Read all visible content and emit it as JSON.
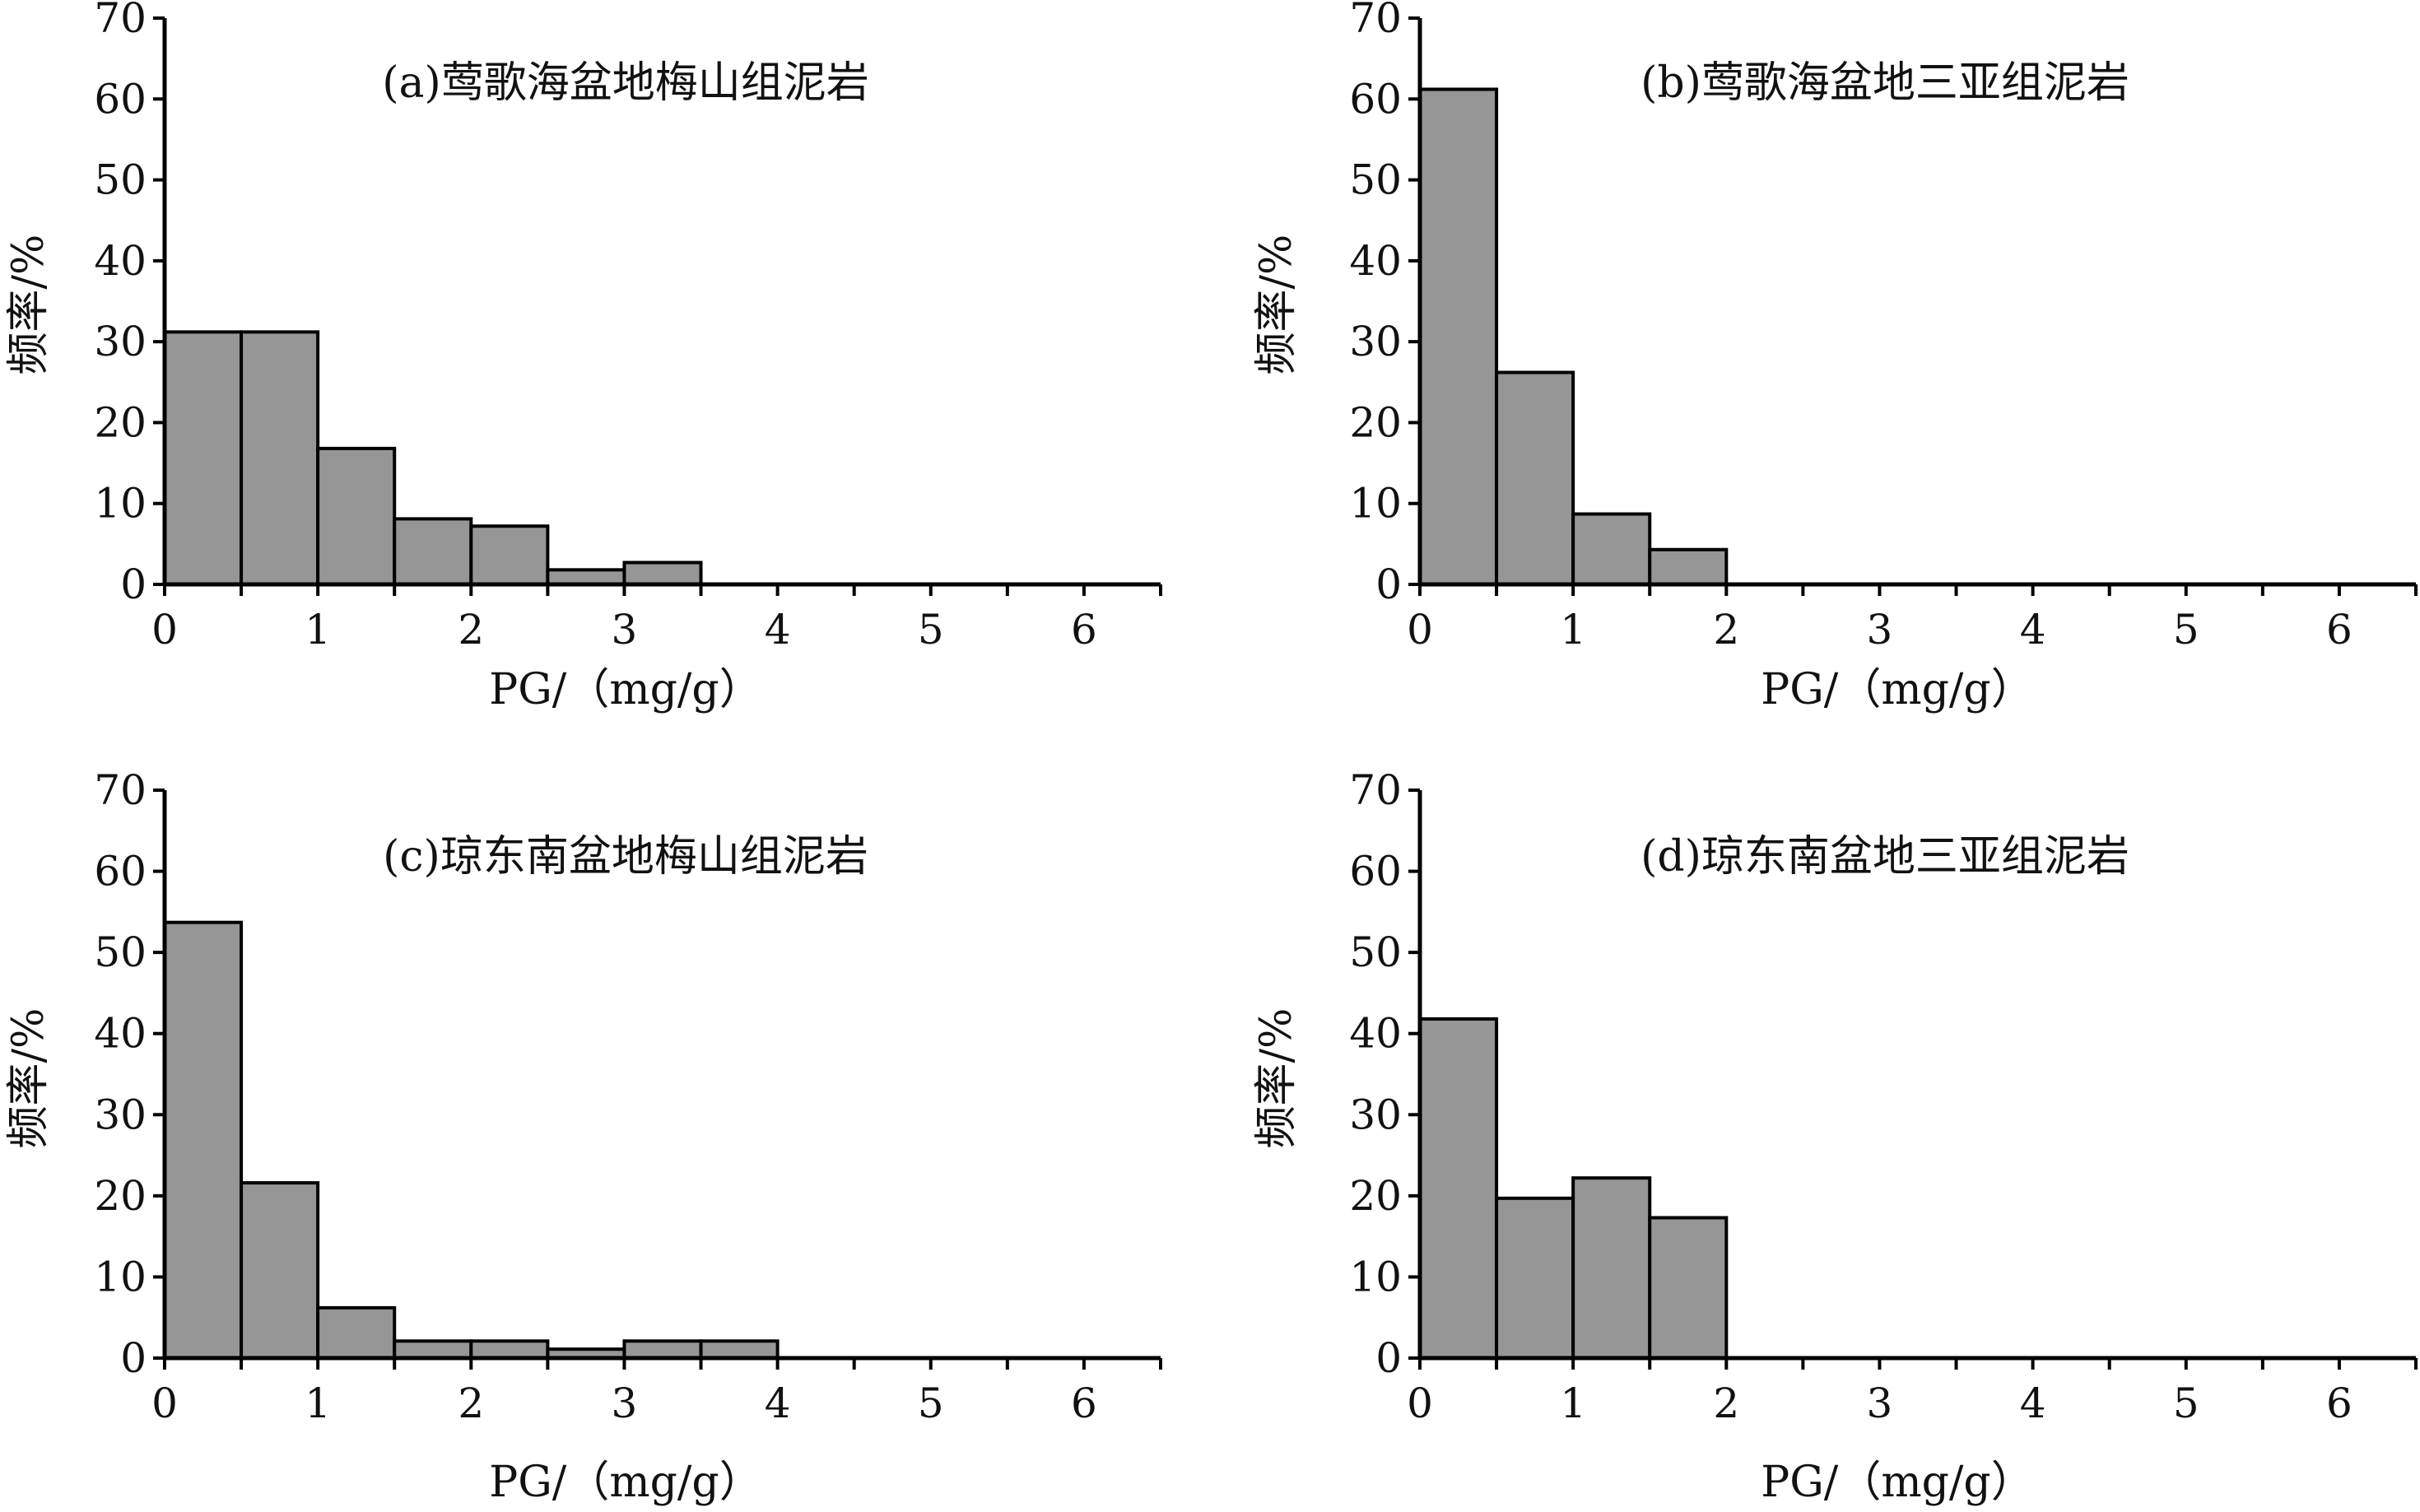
{
  "chart_data": [
    {
      "type": "bar",
      "title": "(a)莺歌海盆地梅山组泥岩",
      "xlabel": "PG/（mg/g）",
      "ylabel": "频率/%",
      "ylim": [
        0,
        70
      ],
      "xlim": [
        0,
        6.5
      ],
      "yticks": [
        "0",
        "10",
        "20",
        "30",
        "40",
        "50",
        "60",
        "70"
      ],
      "xticks": [
        "0",
        "1",
        "2",
        "3",
        "4",
        "5",
        "6"
      ],
      "bin_edges": [
        0,
        0.5,
        1,
        1.5,
        2,
        2.5,
        3,
        3.5,
        4,
        4.5,
        5,
        5.5,
        6,
        6.5
      ],
      "values": [
        31.2,
        31.2,
        16.8,
        8.1,
        7.2,
        1.8,
        2.7,
        0,
        0,
        0,
        0,
        0,
        0
      ],
      "grid": false,
      "bar_color": "#969696"
    },
    {
      "type": "bar",
      "title": "(b)莺歌海盆地三亚组泥岩",
      "xlabel": "PG/（mg/g）",
      "ylabel": "频率/%",
      "ylim": [
        0,
        70
      ],
      "xlim": [
        0,
        6.5
      ],
      "yticks": [
        "0",
        "10",
        "20",
        "30",
        "40",
        "50",
        "60",
        "70"
      ],
      "xticks": [
        "0",
        "1",
        "2",
        "3",
        "4",
        "5",
        "6"
      ],
      "bin_edges": [
        0,
        0.5,
        1,
        1.5,
        2,
        2.5,
        3,
        3.5,
        4,
        4.5,
        5,
        5.5,
        6,
        6.5
      ],
      "values": [
        61.2,
        26.2,
        8.7,
        4.3,
        0,
        0,
        0,
        0,
        0,
        0,
        0,
        0,
        0
      ],
      "grid": false,
      "bar_color": "#969696"
    },
    {
      "type": "bar",
      "title": "(c)琼东南盆地梅山组泥岩",
      "xlabel": "PG/（mg/g）",
      "ylabel": "频率/%",
      "ylim": [
        0,
        70
      ],
      "xlim": [
        0,
        6.5
      ],
      "yticks": [
        "0",
        "10",
        "20",
        "30",
        "40",
        "50",
        "60",
        "70"
      ],
      "xticks": [
        "0",
        "1",
        "2",
        "3",
        "4",
        "5",
        "6"
      ],
      "bin_edges": [
        0,
        0.5,
        1,
        1.5,
        2,
        2.5,
        3,
        3.5,
        4,
        4.5,
        5,
        5.5,
        6,
        6.5
      ],
      "values": [
        53.7,
        21.6,
        6.2,
        2.1,
        2.1,
        1.1,
        2.1,
        2.1,
        0,
        0,
        0,
        0,
        0
      ],
      "grid": false,
      "bar_color": "#969696"
    },
    {
      "type": "bar",
      "title": "(d)琼东南盆地三亚组泥岩",
      "xlabel": "PG/（mg/g）",
      "ylabel": "频率/%",
      "ylim": [
        0,
        70
      ],
      "xlim": [
        0,
        6.5
      ],
      "yticks": [
        "0",
        "10",
        "20",
        "30",
        "40",
        "50",
        "60",
        "70"
      ],
      "xticks": [
        "0",
        "1",
        "2",
        "3",
        "4",
        "5",
        "6"
      ],
      "bin_edges": [
        0,
        0.5,
        1,
        1.5,
        2,
        2.5,
        3,
        3.5,
        4,
        4.5,
        5,
        5.5,
        6,
        6.5
      ],
      "values": [
        41.8,
        19.7,
        22.2,
        17.3,
        0,
        0,
        0,
        0,
        0,
        0,
        0,
        0,
        0
      ],
      "grid": false,
      "bar_color": "#969696"
    }
  ]
}
